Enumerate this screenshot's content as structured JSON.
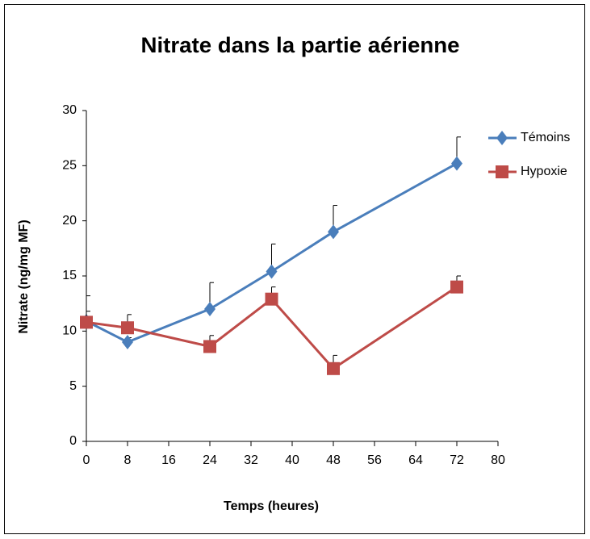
{
  "chart_data": {
    "type": "line",
    "title": "Nitrate dans la partie aérienne",
    "x_label": "Temps (heures)",
    "y_label": "Nitrate  (ng/mg MF)",
    "x": [
      0,
      8,
      24,
      36,
      48,
      72
    ],
    "series": [
      {
        "name": "Témoins",
        "color": "#4a7ebb",
        "marker": "diamond",
        "values": [
          10.9,
          9.0,
          12.0,
          15.4,
          19.0,
          25.2
        ],
        "errors": [
          2.3,
          0.4,
          2.4,
          2.5,
          2.4,
          2.4
        ]
      },
      {
        "name": "Hypoxie",
        "color": "#be4b48",
        "marker": "square",
        "values": [
          10.8,
          10.3,
          8.6,
          12.9,
          6.6,
          14.0
        ],
        "errors": [
          1.0,
          1.2,
          1.0,
          1.1,
          1.2,
          1.0
        ]
      }
    ],
    "xlim": [
      0,
      80
    ],
    "xticks": [
      0,
      8,
      16,
      24,
      32,
      40,
      48,
      56,
      64,
      72,
      80
    ],
    "ylim": [
      0,
      30
    ],
    "yticks": [
      0,
      5,
      10,
      15,
      20,
      25,
      30
    ],
    "grid": false,
    "legend": "right"
  }
}
